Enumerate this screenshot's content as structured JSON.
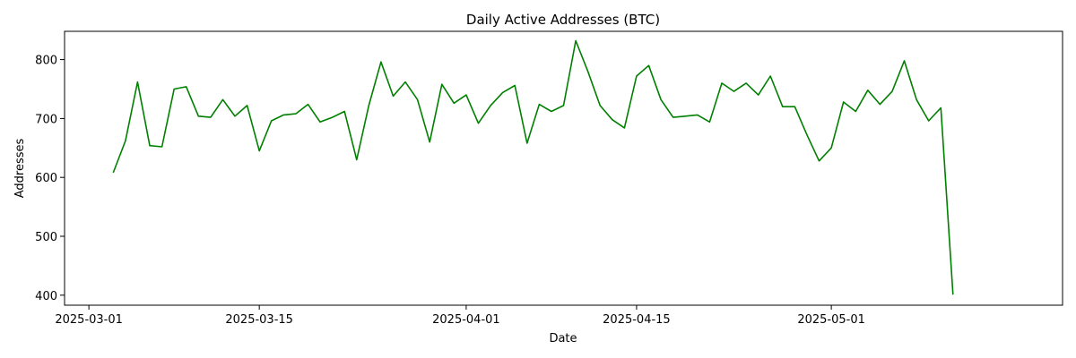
{
  "chart_data": {
    "type": "line",
    "title": "Daily Active Addresses (BTC)",
    "xlabel": "Date",
    "ylabel": "Addresses",
    "x_tick_labels": [
      "2025-03-01",
      "2025-03-15",
      "2025-04-01",
      "2025-04-15",
      "2025-05-01"
    ],
    "y_ticks": [
      400,
      500,
      600,
      700,
      800
    ],
    "ylim": [
      383,
      848
    ],
    "xlim": [
      "2025-02-27",
      "2025-05-20"
    ],
    "grid": false,
    "legend": "none",
    "series": [
      {
        "color": "#008000",
        "x": [
          "2025-03-03",
          "2025-03-04",
          "2025-03-05",
          "2025-03-06",
          "2025-03-07",
          "2025-03-08",
          "2025-03-09",
          "2025-03-10",
          "2025-03-11",
          "2025-03-12",
          "2025-03-13",
          "2025-03-14",
          "2025-03-15",
          "2025-03-16",
          "2025-03-17",
          "2025-03-18",
          "2025-03-19",
          "2025-03-20",
          "2025-03-21",
          "2025-03-22",
          "2025-03-23",
          "2025-03-24",
          "2025-03-25",
          "2025-03-26",
          "2025-03-27",
          "2025-03-28",
          "2025-03-29",
          "2025-03-30",
          "2025-03-31",
          "2025-04-01",
          "2025-04-02",
          "2025-04-03",
          "2025-04-04",
          "2025-04-05",
          "2025-04-06",
          "2025-04-07",
          "2025-04-08",
          "2025-04-09",
          "2025-04-10",
          "2025-04-11",
          "2025-04-12",
          "2025-04-13",
          "2025-04-14",
          "2025-04-15",
          "2025-04-16",
          "2025-04-17",
          "2025-04-18",
          "2025-04-19",
          "2025-04-20",
          "2025-04-21",
          "2025-04-22",
          "2025-04-23",
          "2025-04-24",
          "2025-04-25",
          "2025-04-26",
          "2025-04-27",
          "2025-04-28",
          "2025-04-29",
          "2025-04-30",
          "2025-05-01",
          "2025-05-02",
          "2025-05-03",
          "2025-05-04",
          "2025-05-05",
          "2025-05-06",
          "2025-05-07",
          "2025-05-08",
          "2025-05-09",
          "2025-05-10",
          "2025-05-11"
        ],
        "values": [
          608,
          662,
          762,
          654,
          652,
          750,
          754,
          704,
          702,
          732,
          704,
          722,
          645,
          696,
          706,
          708,
          724,
          694,
          702,
          712,
          630,
          722,
          796,
          738,
          762,
          732,
          660,
          758,
          726,
          740,
          692,
          722,
          744,
          756,
          658,
          724,
          712,
          722,
          832,
          780,
          722,
          698,
          684,
          772,
          790,
          732,
          702,
          704,
          706,
          694,
          760,
          746,
          760,
          740,
          772,
          720,
          720,
          672,
          628,
          650,
          728,
          712,
          748,
          724,
          746,
          798,
          732,
          696,
          718,
          401
        ]
      }
    ]
  }
}
